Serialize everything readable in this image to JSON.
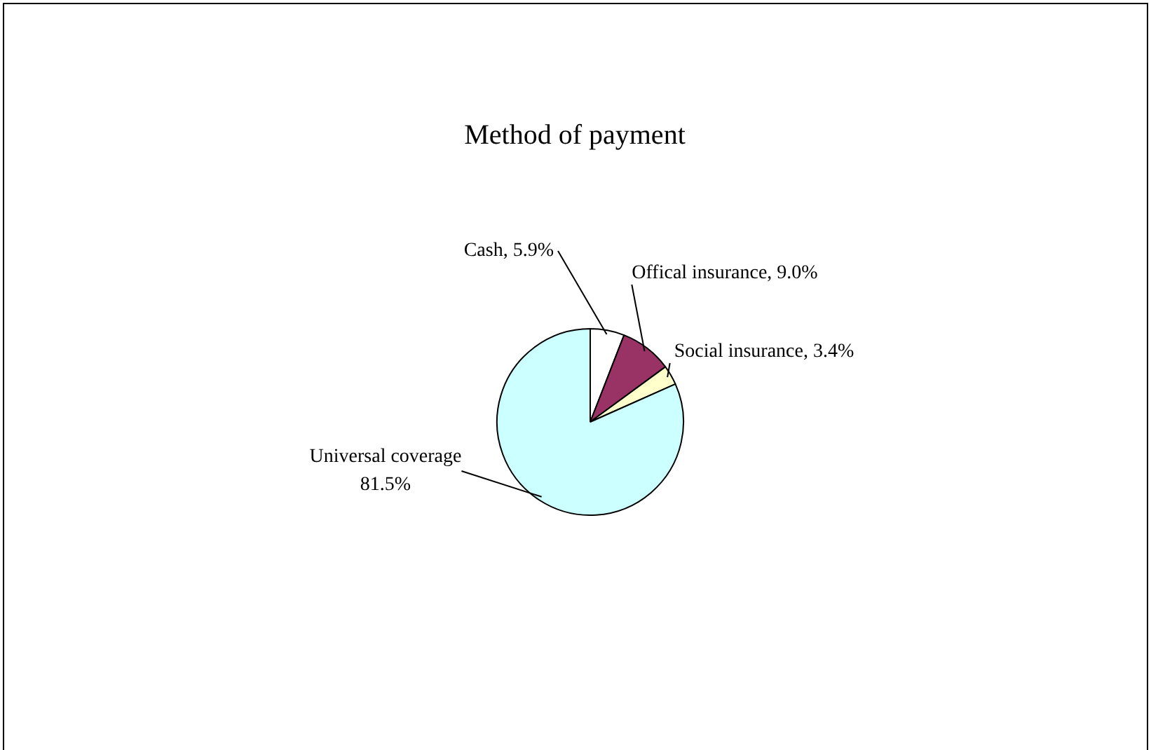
{
  "chart_data": {
    "type": "pie",
    "title": "Method of payment",
    "categories": [
      "Cash",
      "Offical insurance",
      "Social insurance",
      "Universal coverage"
    ],
    "values": [
      5.9,
      9.0,
      3.4,
      81.5
    ],
    "colors": [
      "#ffffff",
      "#993366",
      "#ffffcc",
      "#ccffff"
    ],
    "value_labels": [
      "5.9%",
      "9.0%",
      "3.4%",
      "81.5%"
    ],
    "legend": false
  }
}
